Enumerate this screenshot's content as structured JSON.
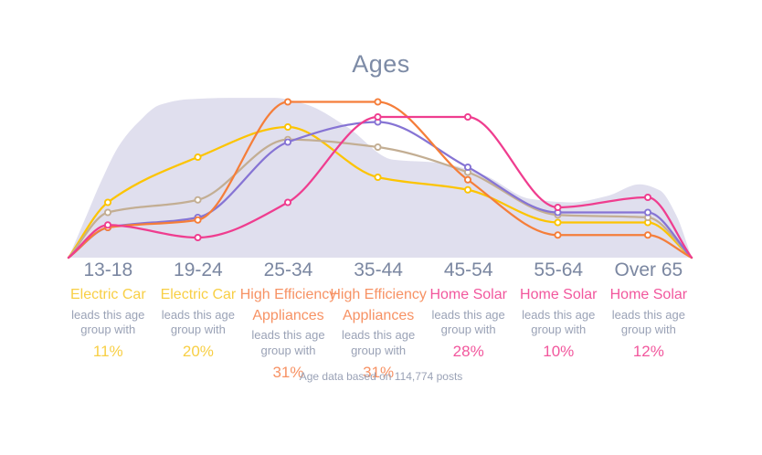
{
  "title": "Ages",
  "footnote": "Age data based on 114,774 posts",
  "colors": {
    "title_text": "#7d8ba6",
    "age_label_text": "#7b87a1",
    "description_text": "#9aa2b6",
    "footnote_text": "#9aa2b6",
    "electric_car_text": "#f8cf45",
    "appliances_text": "#f79264",
    "home_solar_text": "#f2579d",
    "silhouette_fill": "#e0dfee",
    "marker_fill": "#ffffff"
  },
  "chart_data": {
    "type": "line",
    "title": "Ages",
    "categories": [
      "13-18",
      "19-24",
      "25-34",
      "35-44",
      "45-54",
      "55-64",
      "Over 65"
    ],
    "unit": "%",
    "ylim": [
      0,
      35
    ],
    "grid": false,
    "legend": "none",
    "x_axis_labels_shown": true,
    "y_axis_shown": false,
    "series": [
      {
        "name": "Electric Car",
        "color": "#fcc402",
        "values": [
          11,
          20,
          26,
          16,
          13.5,
          7,
          7
        ]
      },
      {
        "name": "",
        "color": "#c3ae93",
        "values": [
          9,
          11.5,
          23.5,
          22,
          17,
          8.5,
          8
        ]
      },
      {
        "name": "",
        "color": "#8674d4",
        "values": [
          6,
          8,
          23,
          27,
          18,
          9,
          9
        ]
      },
      {
        "name": "High Efficiency Appliances",
        "color": "#f57e3a",
        "values": [
          6,
          7.5,
          31,
          31,
          15.5,
          4.5,
          4.5
        ]
      },
      {
        "name": "Home Solar",
        "color": "#ef3d8f",
        "values": [
          6.5,
          4,
          11,
          28,
          28,
          10,
          12
        ]
      }
    ],
    "background_silhouette": {
      "color": "#e0dfee",
      "points_x_pct": [
        [
          75,
          0
        ],
        [
          95,
          8.5
        ],
        [
          110,
          14.9
        ],
        [
          130,
          22.2
        ],
        [
          150,
          26.7
        ],
        [
          175,
          30.4
        ],
        [
          205,
          31.5
        ],
        [
          250,
          31.8
        ],
        [
          300,
          31.8
        ],
        [
          335,
          30.5
        ],
        [
          380,
          26
        ],
        [
          430,
          19.5
        ],
        [
          480,
          18.9
        ],
        [
          530,
          16.4
        ],
        [
          580,
          11.7
        ],
        [
          625,
          11
        ],
        [
          665,
          12.3
        ],
        [
          700,
          14.6
        ],
        [
          722,
          13.4
        ],
        [
          740,
          8.5
        ],
        [
          757,
          0
        ]
      ]
    }
  },
  "annotations": [
    {
      "age": "13-18",
      "leader": "Electric Car",
      "body": "leads this age group with",
      "percent": "11%",
      "color": "#f8cf45"
    },
    {
      "age": "19-24",
      "leader": "Electric Car",
      "body": "leads this age group with",
      "percent": "20%",
      "color": "#f8cf45"
    },
    {
      "age": "25-34",
      "leader": "High Efficiency Appliances",
      "body": "leads this age group with",
      "percent": "31%",
      "color": "#f79264"
    },
    {
      "age": "35-44",
      "leader": "High Efficiency Appliances",
      "body": "leads this age group with",
      "percent": "31%",
      "color": "#f79264"
    },
    {
      "age": "45-54",
      "leader": "Home Solar",
      "body": "leads this age group with",
      "percent": "28%",
      "color": "#f2579d"
    },
    {
      "age": "55-64",
      "leader": "Home Solar",
      "body": "leads this age group with",
      "percent": "10%",
      "color": "#f2579d"
    },
    {
      "age": "Over 65",
      "leader": "Home Solar",
      "body": "leads this age group with",
      "percent": "12%",
      "color": "#f2579d"
    }
  ]
}
